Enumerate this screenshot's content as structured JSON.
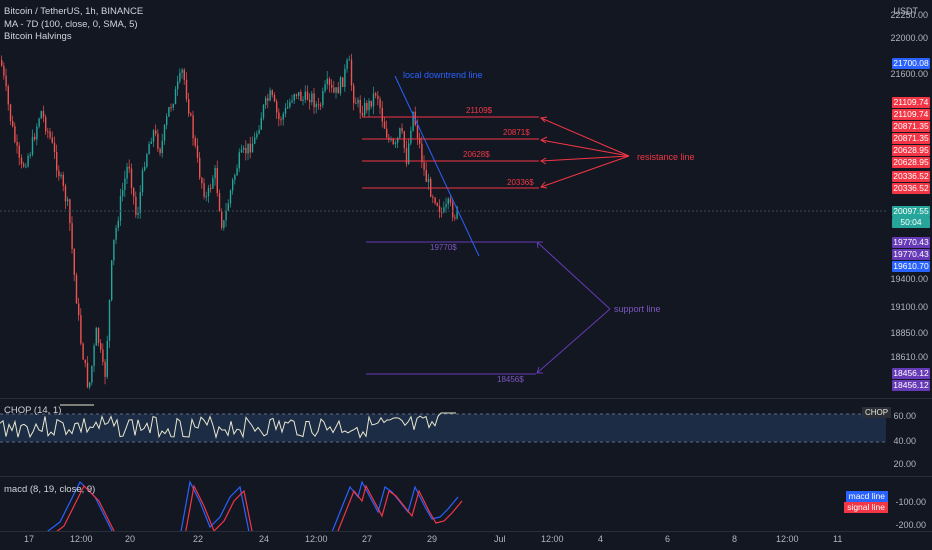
{
  "header": {
    "symbol_line": "Bitcoin / TetherUS, 1h, BINANCE",
    "ma_line": "MA - 7D (100, close, 0, SMA, 5)",
    "halvings": "Bitcoin Halvings"
  },
  "currency": "USDT",
  "price_axis": {
    "ticks": [
      "22250.00",
      "22000.00",
      "21600.00",
      "19400.00",
      "19100.00",
      "18850.00",
      "18610.00"
    ]
  },
  "price_tags": [
    {
      "text": "21700.08",
      "color": "#2962ff"
    },
    {
      "text": "21109.74",
      "color": "#f23645"
    },
    {
      "text": "21109.74",
      "color": "#f23645"
    },
    {
      "text": "20871.35",
      "color": "#f23645"
    },
    {
      "text": "20871.35",
      "color": "#f23645"
    },
    {
      "text": "20628.95",
      "color": "#f23645"
    },
    {
      "text": "20628.95",
      "color": "#f23645"
    },
    {
      "text": "20336.52",
      "color": "#f23645"
    },
    {
      "text": "20336.52",
      "color": "#f23645"
    },
    {
      "text": "20097.55",
      "color": "#26a69a"
    },
    {
      "text": "50:04",
      "color": "#26a69a"
    },
    {
      "text": "19770.43",
      "color": "#673ab7"
    },
    {
      "text": "19770.43",
      "color": "#673ab7"
    },
    {
      "text": "19610.70",
      "color": "#2962ff"
    },
    {
      "text": "18456.12",
      "color": "#673ab7"
    },
    {
      "text": "18456.12",
      "color": "#673ab7"
    }
  ],
  "annotations": {
    "downtrend": "local downtrend line",
    "resistance": "resistance line",
    "support": "support line",
    "levels": [
      "21109$",
      "20871$",
      "20628$",
      "20336$",
      "19770$",
      "18456$"
    ]
  },
  "chop": {
    "title": "CHOP (14, 1)",
    "tag": "CHOP",
    "ticks": [
      "60.00",
      "40.00",
      "20.00"
    ]
  },
  "macd": {
    "title": "macd (8, 19, close, 9)",
    "legend": [
      "macd line",
      "signal line"
    ],
    "ticks": [
      "-100.00",
      "-200.00"
    ]
  },
  "time_axis": [
    "17",
    "12:00",
    "20",
    "22",
    "24",
    "12:00",
    "27",
    "29",
    "Jul",
    "12:00",
    "4",
    "6",
    "8",
    "12:00",
    "11"
  ],
  "colors": {
    "up": "#26a69a",
    "down": "#ef5350",
    "resistance": "#f23645",
    "support": "#673ab7",
    "trend": "#2962ff"
  }
}
